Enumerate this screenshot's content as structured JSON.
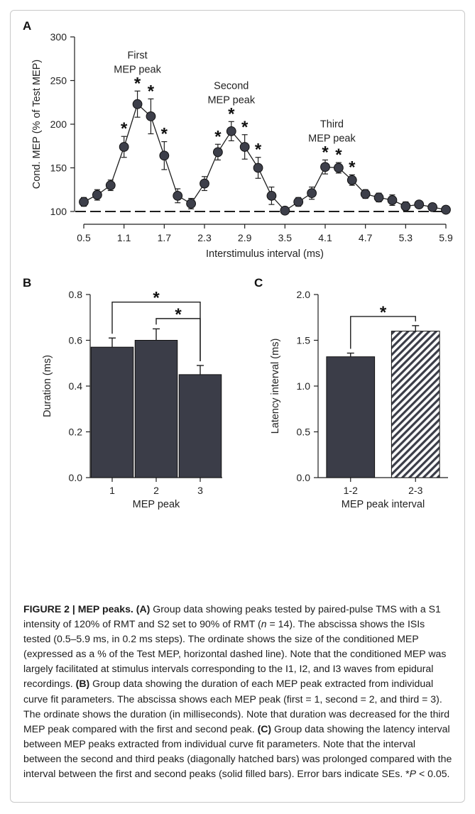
{
  "panel_labels": {
    "a": "A",
    "b": "B",
    "c": "C"
  },
  "chart_data": [
    {
      "panel": "A",
      "type": "line",
      "xlabel": "Interstimulus interval (ms)",
      "ylabel": "Cond. MEP (% of Test MEP)",
      "xlim": [
        0.5,
        5.9
      ],
      "ylim": [
        100,
        300
      ],
      "xticks": [
        "0.5",
        "1.1",
        "1.7",
        "2.3",
        "2.9",
        "3.5",
        "4.1",
        "4.7",
        "5.3",
        "5.9"
      ],
      "yticks": [
        "100",
        "150",
        "200",
        "250",
        "300"
      ],
      "reference_line": {
        "y": 100,
        "style": "dashed"
      },
      "x": [
        0.5,
        0.7,
        0.9,
        1.1,
        1.3,
        1.5,
        1.7,
        1.9,
        2.1,
        2.3,
        2.5,
        2.7,
        2.9,
        3.1,
        3.3,
        3.5,
        3.7,
        3.9,
        4.1,
        4.3,
        4.5,
        4.7,
        4.9,
        5.1,
        5.3,
        5.5,
        5.7,
        5.9
      ],
      "y": [
        111,
        119,
        130,
        174,
        223,
        209,
        164,
        118,
        109,
        132,
        168,
        192,
        174,
        150,
        118,
        101,
        111,
        121,
        151,
        150,
        136,
        120,
        116,
        113,
        106,
        108,
        105,
        102
      ],
      "err": [
        5,
        6,
        6,
        12,
        15,
        20,
        16,
        8,
        6,
        8,
        9,
        11,
        14,
        12,
        10,
        3,
        5,
        7,
        8,
        6,
        6,
        5,
        5,
        6,
        5,
        4,
        4,
        3
      ],
      "significant": [
        false,
        false,
        false,
        true,
        true,
        true,
        true,
        false,
        false,
        false,
        true,
        true,
        true,
        true,
        false,
        false,
        false,
        false,
        true,
        true,
        true,
        false,
        false,
        false,
        false,
        false,
        false,
        false
      ],
      "annotations": [
        {
          "lines": [
            "First",
            "MEP peak"
          ],
          "x": 1.3
        },
        {
          "lines": [
            "Second",
            "MEP peak"
          ],
          "x": 2.7
        },
        {
          "lines": [
            "Third",
            "MEP peak"
          ],
          "x": 4.2
        }
      ],
      "star": "*",
      "grid": false
    },
    {
      "panel": "B",
      "type": "bar",
      "xlabel": "MEP peak",
      "ylabel": "Duration (ms)",
      "categories": [
        "1",
        "2",
        "3"
      ],
      "values": [
        0.57,
        0.6,
        0.45
      ],
      "err": [
        0.04,
        0.05,
        0.04
      ],
      "ylim": [
        0.0,
        0.8
      ],
      "yticks": [
        "0.0",
        "0.2",
        "0.4",
        "0.6",
        "0.8"
      ],
      "bar_color": "#3b3d48",
      "significance": [
        {
          "from": 0,
          "to": 2,
          "label": "*"
        },
        {
          "from": 1,
          "to": 2,
          "label": "*"
        }
      ],
      "grid": false
    },
    {
      "panel": "C",
      "type": "bar",
      "xlabel": "MEP peak interval",
      "ylabel": "Latency interval (ms)",
      "categories": [
        "1-2",
        "2-3"
      ],
      "values": [
        1.32,
        1.6
      ],
      "err": [
        0.04,
        0.06
      ],
      "fills": [
        "solid",
        "hatched"
      ],
      "ylim": [
        0.0,
        2.0
      ],
      "yticks": [
        "0.0",
        "0.5",
        "1.0",
        "1.5",
        "2.0"
      ],
      "bar_color": "#3b3d48",
      "significance": [
        {
          "from": 0,
          "to": 1,
          "label": "*"
        }
      ],
      "grid": false
    }
  ],
  "caption": {
    "fig_label": "FIGURE 2 | MEP peaks.",
    "a_tag": "(A)",
    "a_text": " Group data showing peaks tested by paired-pulse TMS with a S1 intensity of 120% of RMT and S2 set to 90% of RMT (",
    "a_n": "n",
    "a_text2": " = 14). The abscissa shows the ISIs tested (0.5–5.9 ms, in 0.2 ms steps). The ordinate shows the size of the conditioned MEP (expressed as a % of the Test MEP, horizontal dashed line). Note that the conditioned MEP was largely facilitated at stimulus intervals corresponding to the I1, I2, and I3 waves from epidural recordings. ",
    "b_tag": "(B)",
    "b_text": " Group data showing the duration of each MEP peak extracted from individual curve fit parameters. The abscissa shows each MEP peak (first = 1, second = 2, and third = 3). The ordinate shows the duration (in milliseconds). Note that duration was decreased for the third MEP peak compared with the first and second peak. ",
    "c_tag": "(C)",
    "c_text": " Group data showing the latency interval between MEP peaks extracted from individual curve fit parameters. Note that the interval between the second and third peaks (diagonally hatched bars) was prolonged compared with the interval between the first and second peaks (solid filled bars). Error bars indicate SEs. *",
    "p_sym": "P",
    "p_text": " < 0.05."
  }
}
